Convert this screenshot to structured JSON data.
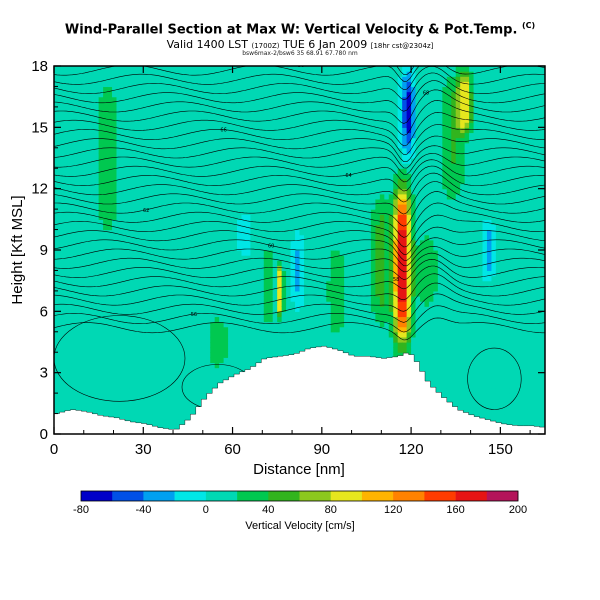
{
  "header": {
    "title": "Wind-Parallel Section at Max W: Vertical Velocity & Pot.Temp.",
    "title_mark": "(C)",
    "valid_main": "Valid 1400 LST",
    "valid_paren": "(1700Z)",
    "valid_date": "TUE 6 Jan 2009",
    "valid_run": "[18hr cst@2304z]",
    "file_line": "bsw6max-2/bsw6 35 68.91 67.780 nm"
  },
  "colors": {
    "background_field": "#00d8b4",
    "terrain": "#ffffff",
    "contour": "#000000",
    "updraft_core": "#d80000",
    "downdraft_core": "#0000d8"
  },
  "chart_data": {
    "type": "heatmap",
    "xlabel": "Distance [nm]",
    "ylabel": "Height [Kft MSL]",
    "xlim": [
      0,
      165
    ],
    "ylim": [
      0,
      18
    ],
    "x_ticks": [
      0,
      30,
      60,
      90,
      120,
      150
    ],
    "y_ticks": [
      0,
      3,
      6,
      9,
      12,
      15,
      18
    ],
    "colorbar": {
      "label": "Vertical Velocity [cm/s]",
      "tick_labels": [
        -80,
        -40,
        0,
        40,
        80,
        120,
        160,
        200
      ],
      "range": [
        -80,
        200
      ],
      "bins": [
        {
          "from": -80,
          "to": -60,
          "color": "#0000c8"
        },
        {
          "from": -60,
          "to": -40,
          "color": "#0050e6"
        },
        {
          "from": -40,
          "to": -20,
          "color": "#00a0f0"
        },
        {
          "from": -20,
          "to": 0,
          "color": "#00e6e6"
        },
        {
          "from": 0,
          "to": 20,
          "color": "#00d8b4"
        },
        {
          "from": 20,
          "to": 40,
          "color": "#00c850"
        },
        {
          "from": 40,
          "to": 60,
          "color": "#32b41e"
        },
        {
          "from": 60,
          "to": 80,
          "color": "#8cc81e"
        },
        {
          "from": 80,
          "to": 100,
          "color": "#e6e61e"
        },
        {
          "from": 100,
          "to": 120,
          "color": "#ffb400"
        },
        {
          "from": 120,
          "to": 140,
          "color": "#ff8200"
        },
        {
          "from": 140,
          "to": 160,
          "color": "#ff3c00"
        },
        {
          "from": 160,
          "to": 180,
          "color": "#e61414"
        },
        {
          "from": 180,
          "to": 200,
          "color": "#b4145a"
        }
      ]
    },
    "terrain": {
      "x": [
        0,
        5,
        10,
        15,
        20,
        25,
        30,
        35,
        40,
        45,
        50,
        55,
        60,
        65,
        70,
        75,
        80,
        85,
        90,
        95,
        100,
        105,
        110,
        115,
        118,
        120,
        125,
        130,
        135,
        140,
        145,
        150,
        155,
        160,
        165
      ],
      "height": [
        1.0,
        1.2,
        1.1,
        0.9,
        0.8,
        0.6,
        0.5,
        0.3,
        0.2,
        0.8,
        1.8,
        2.5,
        2.9,
        3.2,
        3.7,
        3.8,
        3.9,
        4.2,
        4.3,
        4.1,
        3.8,
        3.8,
        3.7,
        3.8,
        4.0,
        3.8,
        2.5,
        1.8,
        1.2,
        0.9,
        0.7,
        0.5,
        0.4,
        0.4,
        0.3
      ]
    },
    "features": [
      {
        "name": "updraft",
        "x_center": 117,
        "half_width": 3.5,
        "y_bottom": 4.0,
        "y_top": 12.5,
        "peak_cm_s": 175
      },
      {
        "name": "downdraft",
        "x_center": 119,
        "half_width": 2.5,
        "y_bottom": 13.5,
        "y_top": 18.0,
        "peak_cm_s": -70
      },
      {
        "name": "updraft",
        "x_center": 76,
        "half_width": 1.3,
        "y_bottom": 5.5,
        "y_top": 8.5,
        "peak_cm_s": 95
      },
      {
        "name": "updraft",
        "x_center": 138,
        "half_width": 3.0,
        "y_bottom": 14.5,
        "y_top": 18.0,
        "peak_cm_s": 85
      },
      {
        "name": "updraft",
        "x_center": 110,
        "half_width": 4.0,
        "y_bottom": 5.0,
        "y_top": 12.0,
        "peak_cm_s": 45
      },
      {
        "name": "updraft",
        "x_center": 95,
        "half_width": 4.0,
        "y_bottom": 4.5,
        "y_top": 9.5,
        "peak_cm_s": 30
      },
      {
        "name": "updraft",
        "x_center": 134,
        "half_width": 5.0,
        "y_bottom": 11.0,
        "y_top": 18.0,
        "peak_cm_s": 35
      },
      {
        "name": "updraft",
        "x_center": 72,
        "half_width": 3.0,
        "y_bottom": 5.0,
        "y_top": 9.5,
        "peak_cm_s": 30
      },
      {
        "name": "downdraft",
        "x_center": 82,
        "half_width": 2.0,
        "y_bottom": 6.0,
        "y_top": 10.0,
        "peak_cm_s": -30
      },
      {
        "name": "downdraft",
        "x_center": 146,
        "half_width": 2.0,
        "y_bottom": 7.5,
        "y_top": 10.5,
        "peak_cm_s": -40
      },
      {
        "name": "downdraft",
        "x_center": 64,
        "half_width": 3.0,
        "y_bottom": 8.5,
        "y_top": 11.0,
        "peak_cm_s": -15
      },
      {
        "name": "updraft",
        "x_center": 18,
        "half_width": 6.0,
        "y_bottom": 9.0,
        "y_top": 18.0,
        "peak_cm_s": 25
      },
      {
        "name": "updraft",
        "x_center": 55,
        "half_width": 5.0,
        "y_bottom": 3.0,
        "y_top": 6.0,
        "peak_cm_s": 25
      },
      {
        "name": "updraft",
        "x_center": 125,
        "half_width": 5.0,
        "y_bottom": 6.0,
        "y_top": 10.0,
        "peak_cm_s": 30
      }
    ],
    "isentropes": {
      "count": 30,
      "base_height": 5.2,
      "spacing": 0.45,
      "label_values": [
        "56",
        "58",
        "60",
        "62",
        "64",
        "66",
        "68"
      ]
    }
  }
}
